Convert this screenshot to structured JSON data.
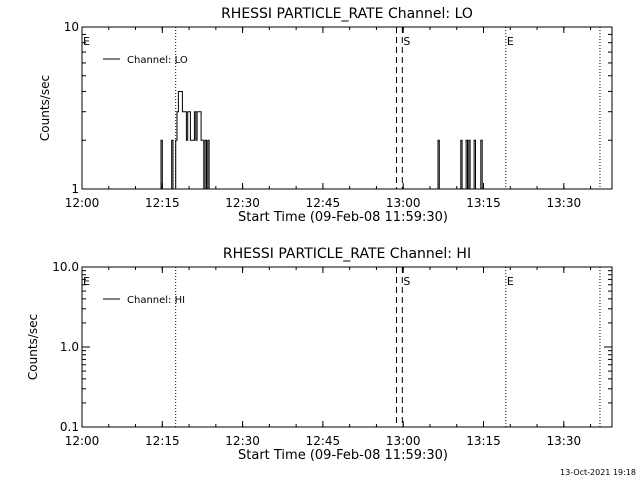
{
  "footer": {
    "timestamp": "13-Oct-2021 19:18"
  },
  "chart_data": [
    {
      "type": "line",
      "title": "RHESSI PARTICLE_RATE Channel: LO",
      "xlabel": "Start Time (09-Feb-08 11:59:30)",
      "ylabel": "Counts/sec",
      "yscale": "log",
      "ylim": [
        1,
        10
      ],
      "xlim": [
        "12:00",
        "13:39"
      ],
      "x_tick_labels": [
        "12:00",
        "12:15",
        "12:30",
        "12:45",
        "13:00",
        "13:15",
        "13:30"
      ],
      "y_tick_labels": [
        "1",
        "10"
      ],
      "legend": {
        "placement": "top-left",
        "label": "Channel: LO"
      },
      "markers": [
        {
          "label": "E",
          "time": "12:00",
          "style": "none"
        },
        {
          "label": "",
          "time": "12:17:30",
          "style": "dotted"
        },
        {
          "label": "",
          "time": "12:58:45",
          "style": "dashed"
        },
        {
          "label": "S",
          "time": "12:59:50",
          "style": "dashed"
        },
        {
          "label": "E",
          "time": "13:19:10",
          "style": "dotted"
        },
        {
          "label": "",
          "time": "13:36:45",
          "style": "dotted"
        }
      ],
      "series": [
        {
          "name": "Channel: LO",
          "points": [
            [
              "12:00",
              1
            ],
            [
              "12:14:30",
              1
            ],
            [
              "12:14:45",
              2
            ],
            [
              "12:15:00",
              1
            ],
            [
              "12:16:30",
              1
            ],
            [
              "12:16:45",
              2
            ],
            [
              "12:17:00",
              1
            ],
            [
              "12:17:15",
              1
            ],
            [
              "12:17:30",
              2
            ],
            [
              "12:17:45",
              3
            ],
            [
              "12:18:00",
              4
            ],
            [
              "12:18:30",
              4
            ],
            [
              "12:18:45",
              3
            ],
            [
              "12:19:15",
              3
            ],
            [
              "12:19:30",
              2
            ],
            [
              "12:19:45",
              3
            ],
            [
              "12:20:00",
              3
            ],
            [
              "12:20:15",
              2
            ],
            [
              "12:20:45",
              2
            ],
            [
              "12:21:00",
              3
            ],
            [
              "12:21:15",
              2
            ],
            [
              "12:21:30",
              3
            ],
            [
              "12:22:00",
              3
            ],
            [
              "12:22:15",
              2
            ],
            [
              "12:22:30",
              2
            ],
            [
              "12:22:45",
              1
            ],
            [
              "12:23:00",
              2
            ],
            [
              "12:23:15",
              1
            ],
            [
              "12:23:30",
              2
            ],
            [
              "12:23:45",
              1
            ],
            [
              "13:06:15",
              1
            ],
            [
              "13:06:30",
              2
            ],
            [
              "13:06:45",
              1
            ],
            [
              "13:10:30",
              1
            ],
            [
              "13:10:45",
              2
            ],
            [
              "13:11:00",
              1
            ],
            [
              "13:11:30",
              1
            ],
            [
              "13:11:45",
              2
            ],
            [
              "13:12:00",
              1
            ],
            [
              "13:12:15",
              2
            ],
            [
              "13:12:30",
              1
            ],
            [
              "13:13:00",
              1
            ],
            [
              "13:13:15",
              2
            ],
            [
              "13:13:30",
              1
            ],
            [
              "13:14:15",
              1
            ],
            [
              "13:14:30",
              2
            ],
            [
              "13:14:45",
              1
            ],
            [
              "13:38:30",
              1
            ]
          ]
        }
      ]
    },
    {
      "type": "line",
      "title": "RHESSI PARTICLE_RATE Channel: HI",
      "xlabel": "Start Time (09-Feb-08 11:59:30)",
      "ylabel": "Counts/sec",
      "yscale": "log",
      "ylim": [
        0.1,
        10
      ],
      "xlim": [
        "12:00",
        "13:39"
      ],
      "x_tick_labels": [
        "12:00",
        "12:15",
        "12:30",
        "12:45",
        "13:00",
        "13:15",
        "13:30"
      ],
      "y_tick_labels": [
        "0.1",
        "1.0",
        "10.0"
      ],
      "legend": {
        "placement": "top-left",
        "label": "Channel: HI"
      },
      "markers": [
        {
          "label": "E",
          "time": "12:00",
          "style": "none"
        },
        {
          "label": "",
          "time": "12:17:30",
          "style": "dotted"
        },
        {
          "label": "",
          "time": "12:58:45",
          "style": "dashed"
        },
        {
          "label": "S",
          "time": "12:59:50",
          "style": "dashed"
        },
        {
          "label": "E",
          "time": "13:19:10",
          "style": "dotted"
        },
        {
          "label": "",
          "time": "13:36:45",
          "style": "dotted"
        }
      ],
      "series": [
        {
          "name": "Channel: HI",
          "points": []
        }
      ]
    }
  ]
}
